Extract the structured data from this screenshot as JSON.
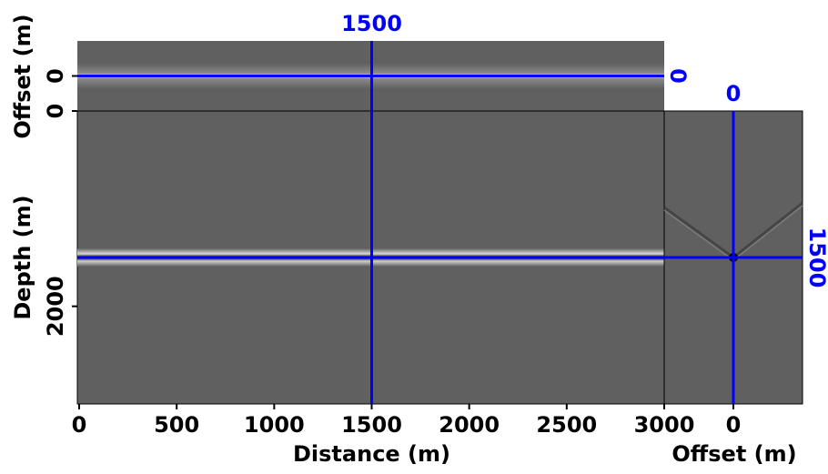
{
  "chart_data": {
    "type": "cube",
    "x_label": "Distance (m)",
    "depth_label": "Depth (m)",
    "offset_label": "Offset (m)",
    "xlim": [
      0,
      3000
    ],
    "xticks": [
      0,
      500,
      1000,
      1500,
      2000,
      2500,
      3000
    ],
    "ylim": [
      0,
      3000
    ],
    "yticks": [
      0,
      2000
    ],
    "offset_lim": [
      -700,
      700
    ],
    "offset_ticks": [
      0
    ],
    "crosshair": {
      "x": 1500,
      "depth": 1500,
      "offset": 0
    },
    "crosshair_color": "#0000ff"
  }
}
